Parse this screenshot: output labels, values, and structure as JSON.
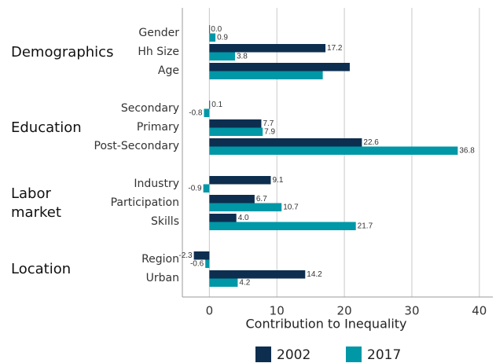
{
  "chart_data": {
    "type": "bar",
    "orientation": "horizontal",
    "groups": [
      {
        "name": "Demographics",
        "categories": [
          "Gender",
          "Hh Size",
          "Age"
        ]
      },
      {
        "name": "Education",
        "categories": [
          "Secondary",
          "Primary",
          "Post-Secondary"
        ]
      },
      {
        "name": "Labor market",
        "categories": [
          "Industry",
          "Participation",
          "Skills"
        ]
      },
      {
        "name": "Location",
        "categories": [
          "Region",
          "Urban"
        ]
      }
    ],
    "series": [
      {
        "name": "2002",
        "color": "#0d2e4f",
        "values": [
          0,
          17.2,
          20.8,
          0.1,
          7.7,
          22.6,
          9.1,
          6.7,
          4.0,
          -2.3,
          14.2
        ],
        "value_labels": [
          "0.0",
          "17.2",
          null,
          "0.1",
          "7.7",
          "22.6",
          "9.1",
          "6.7",
          "4.0",
          "-2.3",
          "14.2"
        ]
      },
      {
        "name": "2017",
        "color": "#0097a7",
        "values": [
          0.9,
          3.8,
          16.8,
          -0.8,
          7.9,
          36.8,
          -0.9,
          10.7,
          21.7,
          -0.6,
          4.2
        ],
        "value_labels": [
          "0.9",
          "3.8",
          null,
          "-0.8",
          "7.9",
          "36.8",
          "-0.9",
          "10.7",
          "21.7",
          "-0.6",
          "4.2"
        ]
      }
    ],
    "xlabel": "Contribution to Inequality",
    "xlim": [
      -4,
      42
    ],
    "xticks": [
      0,
      10,
      20,
      30,
      40
    ],
    "grid": true,
    "legend": "bottom"
  }
}
